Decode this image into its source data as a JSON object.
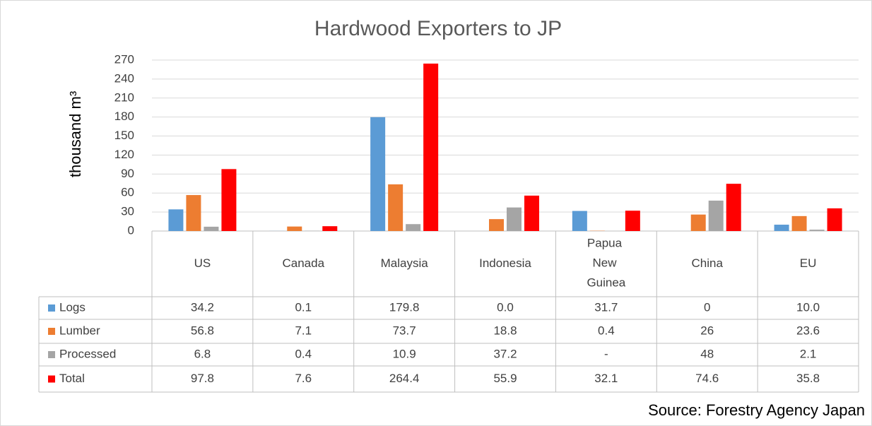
{
  "chart_data": {
    "type": "bar",
    "title": "Hardwood Exporters to JP",
    "y_label": "thousand m³",
    "source": "Source: Forestry Agency Japan",
    "categories": [
      "US",
      "Canada",
      "Malaysia",
      "Indonesia",
      "Papua New Guinea",
      "China",
      "EU"
    ],
    "series": [
      {
        "name": "Logs",
        "color": "#5b9bd5",
        "values": [
          34.2,
          0.1,
          179.8,
          0.0,
          31.7,
          0,
          10.0
        ],
        "value_labels": [
          "34.2",
          "0.1",
          "179.8",
          "0.0",
          "31.7",
          "0",
          "10.0"
        ]
      },
      {
        "name": "Lumber",
        "color": "#ed7d31",
        "values": [
          56.8,
          7.1,
          73.7,
          18.8,
          0.4,
          26,
          23.6
        ]
      },
      {
        "name": "Processed",
        "color": "#a5a5a5",
        "values": [
          6.8,
          0.4,
          10.9,
          37.2,
          null,
          48,
          2.1
        ],
        "value_labels": [
          "6.8",
          "0.4",
          "10.9",
          "37.2",
          "-",
          "48",
          "2.1"
        ]
      },
      {
        "name": "Total",
        "color": "#ff0000",
        "values": [
          97.8,
          7.6,
          264.4,
          55.9,
          32.1,
          74.6,
          35.8
        ]
      }
    ],
    "ylim": [
      0,
      270
    ],
    "yticks": [
      0,
      30,
      60,
      90,
      120,
      150,
      180,
      210,
      240,
      270
    ],
    "grid": true
  }
}
